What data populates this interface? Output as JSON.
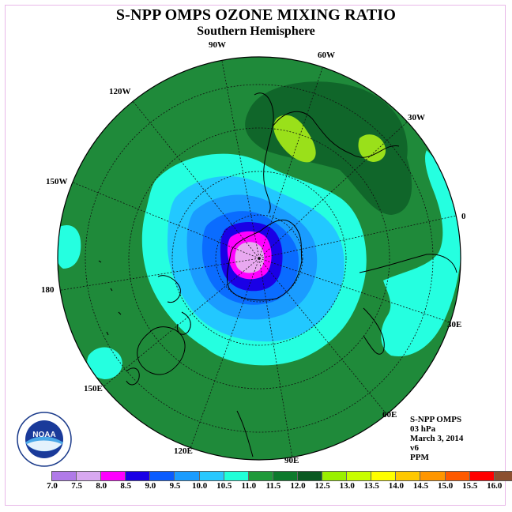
{
  "title": "S-NPP OMPS OZONE MIXING RATIO",
  "subtitle": "Southern Hemisphere",
  "longitude_labels": {
    "lon_90w": "90W",
    "lon_60w": "60W",
    "lon_30w": "30W",
    "lon_0": "0",
    "lon_30e": "30E",
    "lon_60e": "60E",
    "lon_90e": "90E",
    "lon_120e": "120E",
    "lon_150e": "150E",
    "lon_180": "180",
    "lon_150w": "150W",
    "lon_120w": "120W"
  },
  "info": {
    "product": "S-NPP OMPS",
    "level": "03 hPa",
    "date": "March 3, 2014",
    "version": "v6",
    "units": "PPM"
  },
  "logo_text": "NOAA",
  "colorbar": {
    "ticks": [
      "7.0",
      "7.5",
      "8.0",
      "8.5",
      "9.0",
      "9.5",
      "10.0",
      "10.5",
      "11.0",
      "11.5",
      "12.0",
      "12.5",
      "13.0",
      "13.5",
      "14.0",
      "14.5",
      "15.0",
      "15.5",
      "16.0"
    ],
    "colors": [
      "#b07ae8",
      "#d8a8f0",
      "#ff00ff",
      "#1a00e6",
      "#0a5cff",
      "#1a9cff",
      "#28c8ff",
      "#20ffd8",
      "#1f9a3a",
      "#0d7a2c",
      "#0a5a22",
      "#9af000",
      "#c8ff00",
      "#ffff00",
      "#ffc800",
      "#ff9600",
      "#ff5a00",
      "#ff0000",
      "#8c5030"
    ]
  },
  "field": {
    "background": "#1f8a3a",
    "high_12": "#10662a",
    "peak_12_5": "#9ae01a",
    "band_11": "#25ffe0",
    "band_10_5": "#22c8ff",
    "band_10": "#1a9cff",
    "band_9_5": "#0a6cff",
    "band_9": "#1a00e6",
    "band_8_5": "#ff00ff",
    "band_8": "#e8a8f0"
  }
}
